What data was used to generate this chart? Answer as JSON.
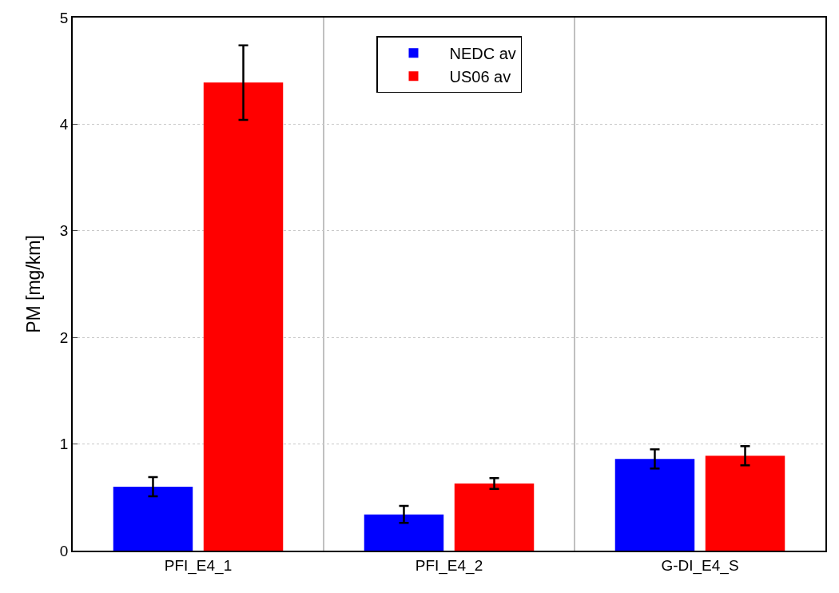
{
  "chart_data": {
    "type": "bar",
    "ylabel": "PM [mg/km]",
    "categories": [
      "PFI_E4_1",
      "PFI_E4_2",
      "G-DI_E4_S"
    ],
    "series": [
      {
        "name": "NEDC av",
        "color": "#0000ff",
        "values": [
          0.6,
          0.34,
          0.86
        ],
        "errors": [
          0.09,
          0.08,
          0.09
        ]
      },
      {
        "name": "US06 av",
        "color": "#ff0000",
        "values": [
          4.39,
          0.63,
          0.89
        ],
        "errors": [
          0.35,
          0.05,
          0.09
        ]
      }
    ],
    "ylim": [
      0,
      5
    ],
    "yticks": [
      0,
      1,
      2,
      3,
      4,
      5
    ],
    "grid": true,
    "legend": "top"
  }
}
